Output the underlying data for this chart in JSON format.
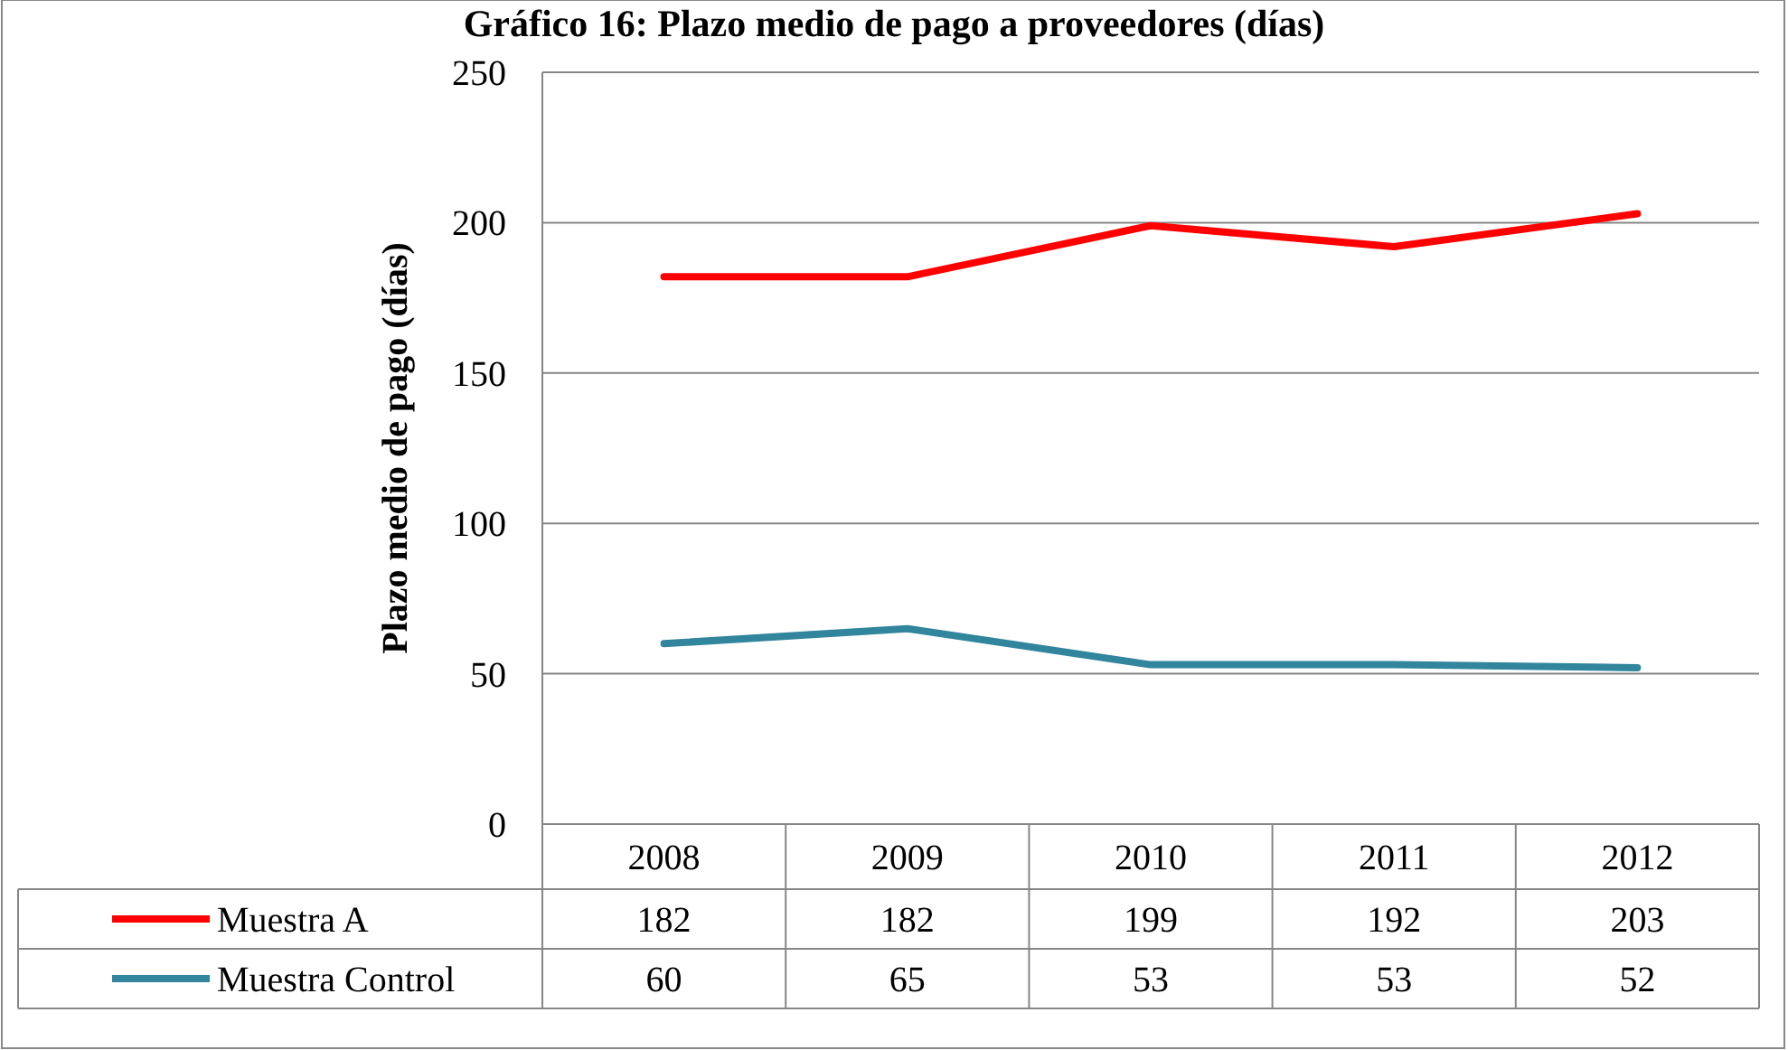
{
  "chart_data": {
    "type": "line",
    "title": "Gráfico 16: Plazo medio de pago a proveedores (días)",
    "ylabel": "Plazo medio de pago (días)",
    "categories": [
      "2008",
      "2009",
      "2010",
      "2011",
      "2012"
    ],
    "series": [
      {
        "name": "Muestra A",
        "color": "#ff0000",
        "values": [
          182,
          182,
          199,
          192,
          203
        ]
      },
      {
        "name": "Muestra Control",
        "color": "#31859c",
        "values": [
          60,
          65,
          53,
          53,
          52
        ]
      }
    ],
    "ylim": [
      0,
      250
    ],
    "yticks": [
      0,
      50,
      100,
      150,
      200,
      250
    ],
    "grid": "y",
    "data_labels": true,
    "legend": "bottom"
  }
}
